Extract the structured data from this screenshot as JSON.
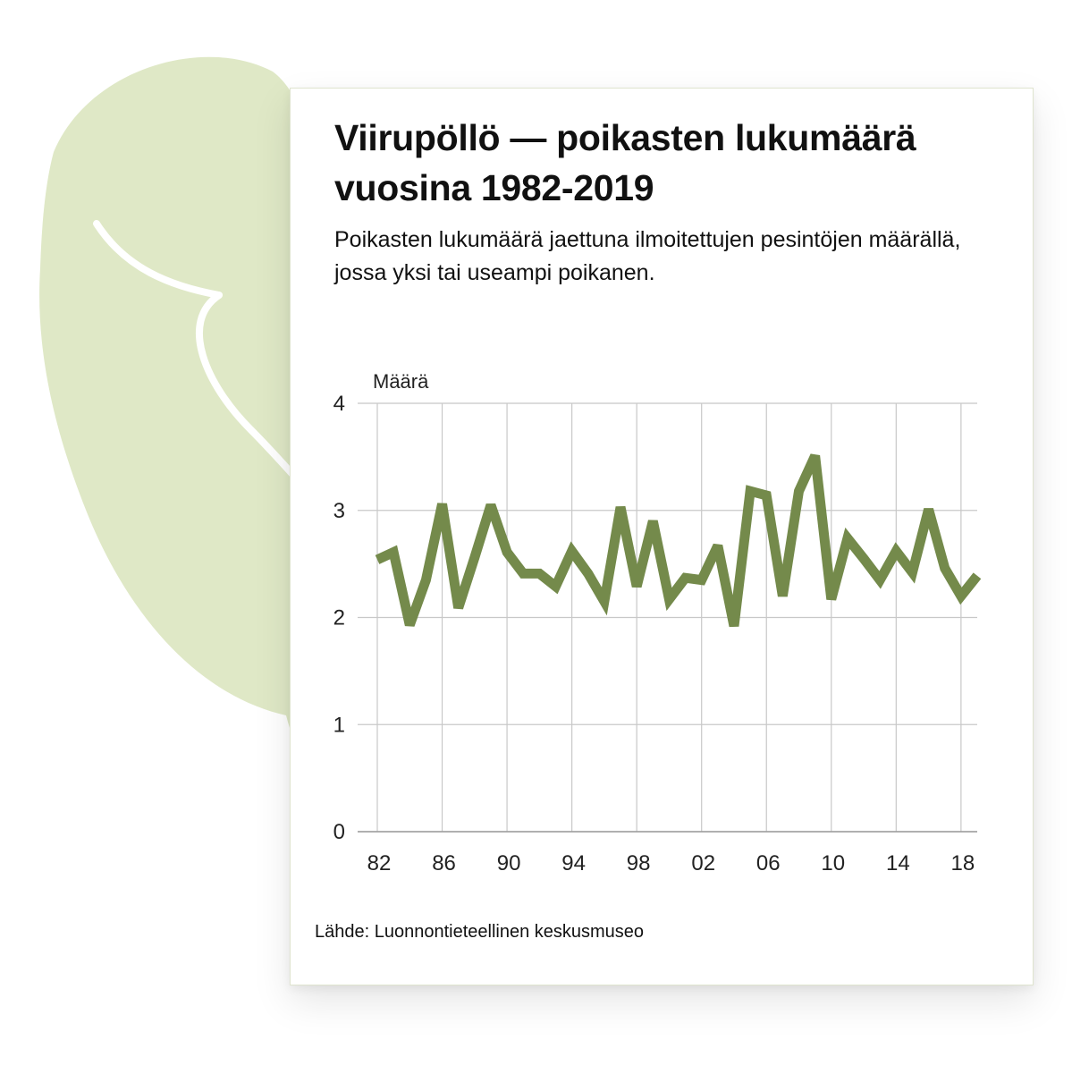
{
  "title": "Viirupöllö — poikasten lukumäärä vuosina 1982-2019",
  "subtitle": "Poikasten lukumäärä jaettuna ilmoitettujen pesintöjen määrällä, jossa yksi tai useampi poikanen.",
  "source": "Lähde: Luonnontieteellinen keskusmuseo",
  "colors": {
    "line": "#748a4b",
    "owl": "#dfe8c6",
    "grid": "#c8c8c8"
  },
  "illustration": "owl-silhouette",
  "chart_data": {
    "type": "line",
    "ylabel": "Määrä",
    "ylim": [
      0,
      4
    ],
    "yticks": [
      "0",
      "1",
      "2",
      "3",
      "4"
    ],
    "xlim": [
      1982,
      2019
    ],
    "xtick_years": [
      1982,
      1986,
      1990,
      1994,
      1998,
      2002,
      2006,
      2010,
      2014,
      2018
    ],
    "xtick_labels": [
      "82",
      "86",
      "90",
      "94",
      "98",
      "02",
      "06",
      "10",
      "14",
      "18"
    ],
    "grid": true,
    "x": [
      1982,
      1983,
      1984,
      1985,
      1986,
      1987,
      1988,
      1989,
      1990,
      1991,
      1992,
      1993,
      1994,
      1995,
      1996,
      1997,
      1998,
      1999,
      2000,
      2001,
      2002,
      2003,
      2004,
      2005,
      2006,
      2007,
      2008,
      2009,
      2010,
      2011,
      2012,
      2013,
      2014,
      2015,
      2016,
      2017,
      2018,
      2019
    ],
    "series": [
      {
        "values": [
          2.54,
          2.61,
          1.93,
          2.35,
          3.06,
          2.09,
          2.56,
          3.05,
          2.61,
          2.41,
          2.41,
          2.29,
          2.62,
          2.41,
          2.15,
          3.03,
          2.29,
          2.9,
          2.17,
          2.37,
          2.35,
          2.67,
          1.92,
          3.18,
          3.14,
          2.2,
          3.18,
          3.51,
          2.17,
          2.74,
          2.55,
          2.35,
          2.62,
          2.42,
          3.01,
          2.46,
          2.2,
          2.39
        ]
      }
    ]
  }
}
